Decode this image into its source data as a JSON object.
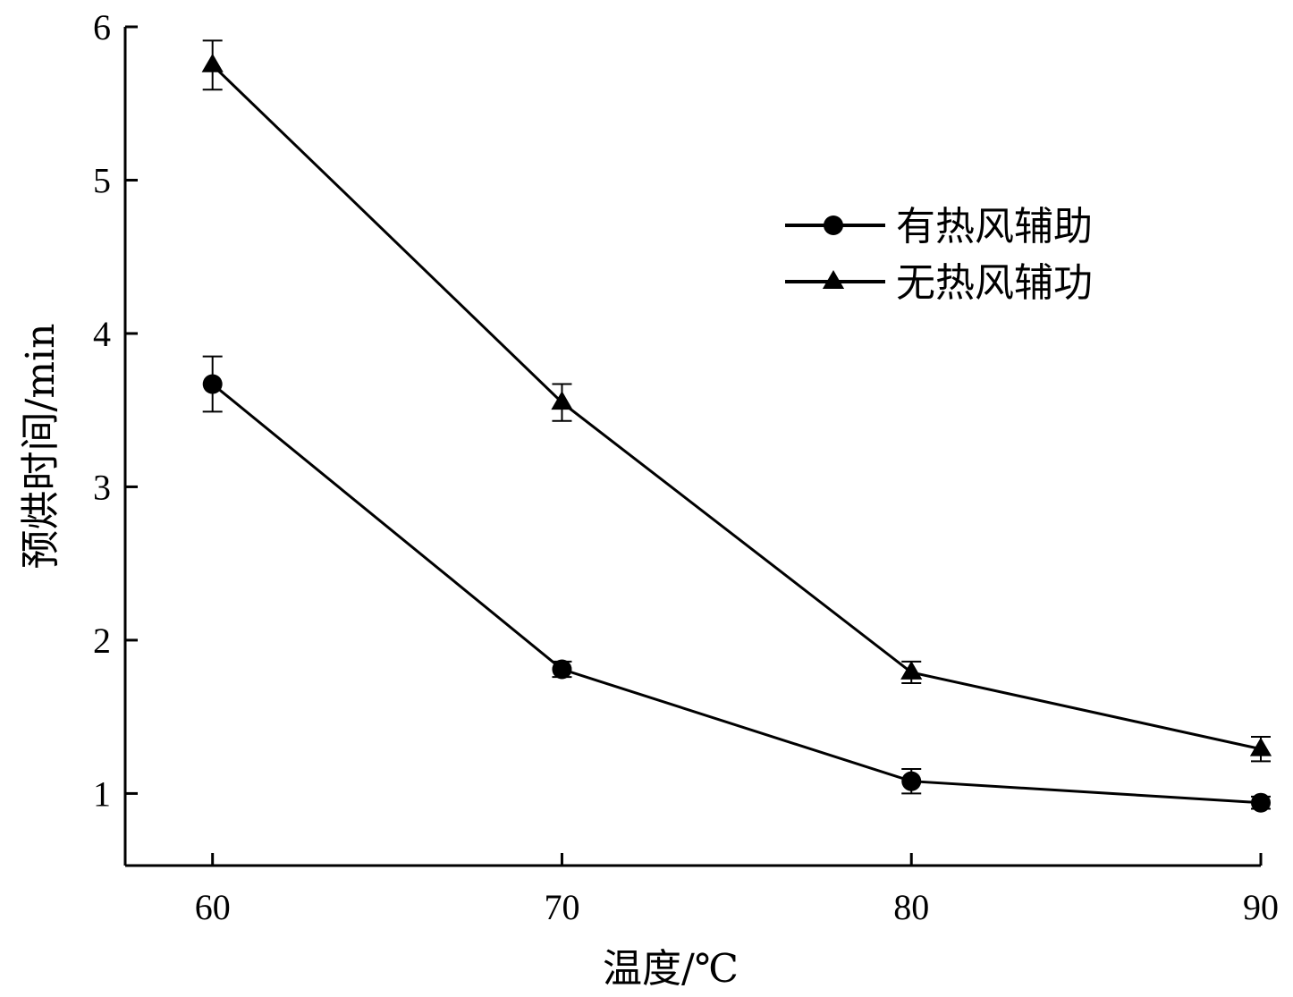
{
  "chart_data": {
    "type": "line",
    "title": "",
    "xlabel": "温度/℃",
    "ylabel": "预烘时间/min",
    "x": [
      60,
      70,
      80,
      90
    ],
    "xticks": [
      "60",
      "70",
      "80",
      "90"
    ],
    "yticks": [
      "1",
      "2",
      "3",
      "4",
      "5",
      "6"
    ],
    "xlim": [
      57.5,
      90
    ],
    "ylim": [
      0.53,
      6
    ],
    "grid": false,
    "legend_position": "upper-right",
    "series": [
      {
        "name": "有热风辅助",
        "marker": "circle",
        "values": [
          3.67,
          1.81,
          1.08,
          0.94
        ],
        "errors": [
          0.18,
          0.05,
          0.08,
          0.04
        ]
      },
      {
        "name": "无热风辅功",
        "marker": "triangle",
        "values": [
          5.75,
          3.55,
          1.79,
          1.29
        ],
        "errors": [
          0.16,
          0.12,
          0.07,
          0.08
        ]
      }
    ],
    "colors": {
      "line": "#000000",
      "axis": "#000000"
    }
  }
}
